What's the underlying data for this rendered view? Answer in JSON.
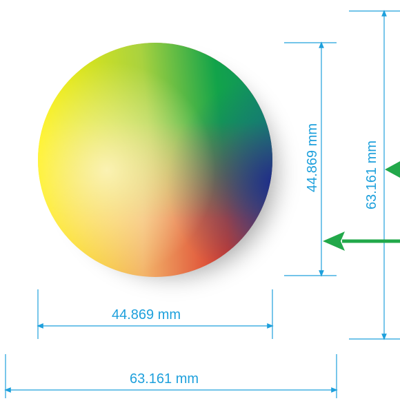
{
  "colors": {
    "dimension": "#1ea0dc",
    "arrow": "#22a84a",
    "sphere_stops": [
      "#fff200",
      "#f7e97a",
      "#8dc63f",
      "#0a9e4a",
      "#0f8a6b",
      "#2b2f8f",
      "#c8202f",
      "#f07a2a"
    ]
  },
  "labels": {
    "inner_width": "44.869 mm",
    "outer_width": "63.161 mm",
    "inner_height": "44.869 mm",
    "outer_height": "63.161 mm"
  },
  "icons": {
    "arrow_right_edge": "arrow-left-icon",
    "arrow_mid": "arrow-left-icon"
  }
}
